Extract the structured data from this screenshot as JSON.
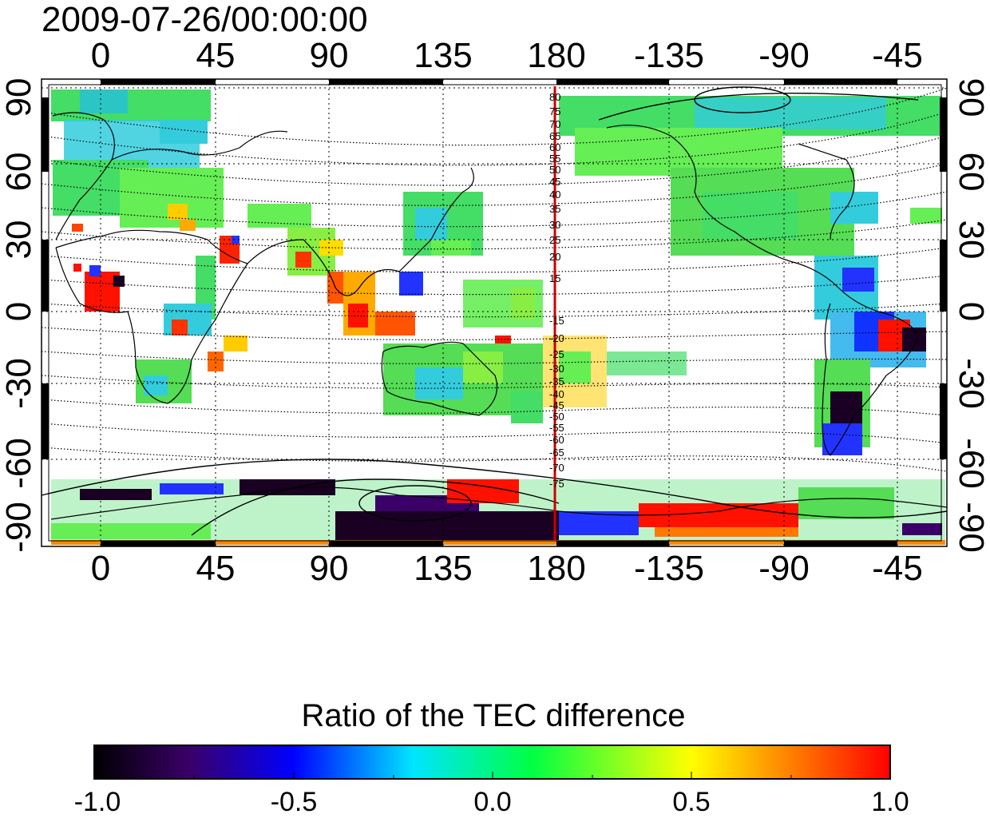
{
  "title": "2009-07-26/00:00:00",
  "map": {
    "lon_ticks_top": [
      "0",
      "45",
      "90",
      "135",
      "180",
      "-135",
      "-90",
      "-45"
    ],
    "lon_ticks_bottom": [
      "0",
      "45",
      "90",
      "135",
      "180",
      "-135",
      "-90",
      "-45"
    ],
    "lat_ticks_left": [
      "90",
      "60",
      "30",
      "0",
      "-30",
      "-60",
      "-90"
    ],
    "lat_ticks_right": [
      "90",
      "60",
      "30",
      "0",
      "-30",
      "-60",
      "-90"
    ],
    "contour_labels_north": [
      "80",
      "75",
      "70",
      "65",
      "60",
      "55",
      "50",
      "45",
      "40",
      "35",
      "30",
      "25",
      "20",
      "15"
    ],
    "contour_labels_south": [
      "-15",
      "-20",
      "-25",
      "-30",
      "-35",
      "-40",
      "-45",
      "-50",
      "-55",
      "-60",
      "-65",
      "-70",
      "-75"
    ],
    "meridian_marker_lon": 180,
    "meridian_marker_color": "#cc0000"
  },
  "colorbar": {
    "title": "Ratio of the TEC difference",
    "ticks": [
      "-1.0",
      "-0.5",
      "0.0",
      "0.5",
      "1.0"
    ],
    "min": -1.0,
    "max": 1.0,
    "colors": [
      "#000000",
      "#3a0068",
      "#0000ff",
      "#00e5ff",
      "#00ff44",
      "#ffff00",
      "#ff0000"
    ]
  },
  "colors": {
    "green": "#33dd55",
    "cyan": "#33ccdd",
    "blue": "#2233ff",
    "yellow": "#ffee00",
    "red": "#ff1100",
    "dark": "#1a0022"
  }
}
